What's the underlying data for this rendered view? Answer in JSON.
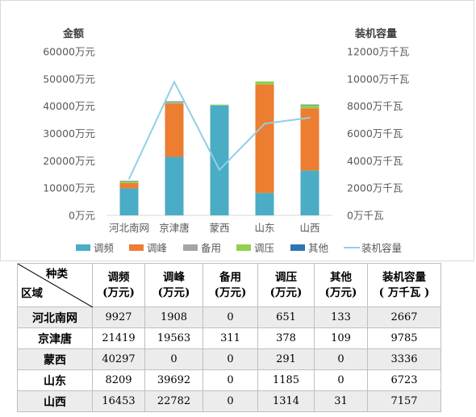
{
  "chart_data": {
    "type": "bar",
    "stacked": true,
    "categories": [
      "河北南网",
      "京津唐",
      "蒙西",
      "山东",
      "山西"
    ],
    "series": [
      {
        "name": "调频",
        "values": [
          9927,
          21419,
          40297,
          8209,
          16453
        ],
        "color": "#4bacc6"
      },
      {
        "name": "调峰",
        "values": [
          1908,
          19563,
          0,
          39692,
          22782
        ],
        "color": "#ed7d31"
      },
      {
        "name": "备用",
        "values": [
          0,
          311,
          0,
          0,
          0
        ],
        "color": "#a5a5a5"
      },
      {
        "name": "调压",
        "values": [
          651,
          378,
          291,
          1185,
          1314
        ],
        "color": "#92d050"
      },
      {
        "name": "其他",
        "values": [
          133,
          109,
          0,
          0,
          31
        ],
        "color": "#2e75b6"
      }
    ],
    "line_series": {
      "name": "装机容量",
      "values": [
        2667,
        9785,
        3336,
        6723,
        7157
      ],
      "color": "#8fd0e6",
      "axis": "right"
    },
    "ylabel_left": "金额",
    "ylabel_right": "装机容量",
    "ylim_left": [
      0,
      60000
    ],
    "ylim_right": [
      0,
      12000
    ],
    "yticks_left": [
      "0万元",
      "10000万元",
      "20000万元",
      "30000万元",
      "40000万元",
      "50000万元",
      "60000万元"
    ],
    "yticks_right": [
      "0万千瓦",
      "2000万千瓦",
      "4000万千瓦",
      "6000万千瓦",
      "8000万千瓦",
      "10000万千瓦",
      "12000万千瓦"
    ],
    "legend_position": "bottom",
    "grid": false
  },
  "table": {
    "corner_top": "种类",
    "corner_bottom": "区域",
    "headers": [
      {
        "line1": "调频",
        "line2": "(万元)"
      },
      {
        "line1": "调峰",
        "line2": "(万元)"
      },
      {
        "line1": "备用",
        "line2": "(万元)"
      },
      {
        "line1": "调压",
        "line2": "(万元)"
      },
      {
        "line1": "其他",
        "line2": "(万元)"
      },
      {
        "line1": "装机容量",
        "line2": "( 万千瓦 )"
      }
    ],
    "rows": [
      {
        "region": "河北南网",
        "cells": [
          "9927",
          "1908",
          "0",
          "651",
          "133",
          "2667"
        ]
      },
      {
        "region": "京津唐",
        "cells": [
          "21419",
          "19563",
          "311",
          "378",
          "109",
          "9785"
        ]
      },
      {
        "region": "蒙西",
        "cells": [
          "40297",
          "0",
          "0",
          "291",
          "0",
          "3336"
        ]
      },
      {
        "region": "山东",
        "cells": [
          "8209",
          "39692",
          "0",
          "1185",
          "0",
          "6723"
        ]
      },
      {
        "region": "山西",
        "cells": [
          "16453",
          "22782",
          "0",
          "1314",
          "31",
          "7157"
        ]
      }
    ]
  }
}
